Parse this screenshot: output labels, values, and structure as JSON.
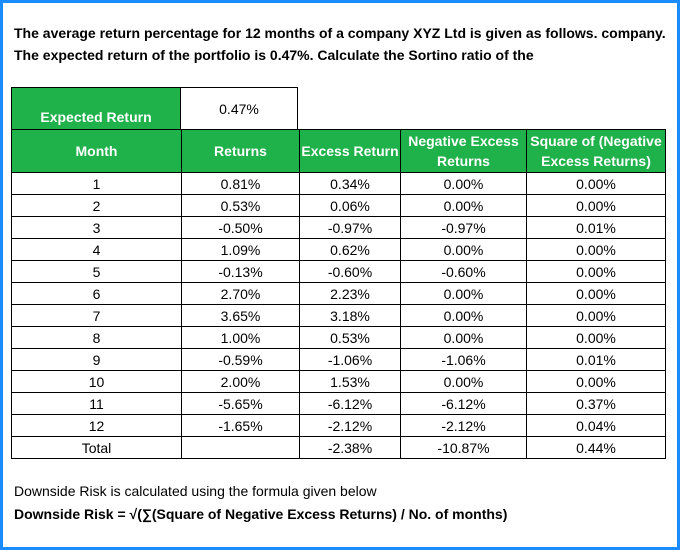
{
  "intro": {
    "line1": "The average return percentage for 12 months of a company XYZ Ltd is given as follows. company.",
    "line2": "The expected return of the portfolio is 0.47%. Calculate the Sortino ratio of the"
  },
  "expected_return": {
    "label": "Expected Return",
    "value": "0.47%"
  },
  "table": {
    "headers": [
      "Month",
      "Returns",
      "Excess Return",
      "Negative Excess Returns",
      "Square of (Negative Excess Returns)"
    ],
    "rows": [
      [
        "1",
        "0.81%",
        "0.34%",
        "0.00%",
        "0.00%"
      ],
      [
        "2",
        "0.53%",
        "0.06%",
        "0.00%",
        "0.00%"
      ],
      [
        "3",
        "-0.50%",
        "-0.97%",
        "-0.97%",
        "0.01%"
      ],
      [
        "4",
        "1.09%",
        "0.62%",
        "0.00%",
        "0.00%"
      ],
      [
        "5",
        "-0.13%",
        "-0.60%",
        "-0.60%",
        "0.00%"
      ],
      [
        "6",
        "2.70%",
        "2.23%",
        "0.00%",
        "0.00%"
      ],
      [
        "7",
        "3.65%",
        "3.18%",
        "0.00%",
        "0.00%"
      ],
      [
        "8",
        "1.00%",
        "0.53%",
        "0.00%",
        "0.00%"
      ],
      [
        "9",
        "-0.59%",
        "-1.06%",
        "-1.06%",
        "0.01%"
      ],
      [
        "10",
        "2.00%",
        "1.53%",
        "0.00%",
        "0.00%"
      ],
      [
        "11",
        "-5.65%",
        "-6.12%",
        "-6.12%",
        "0.37%"
      ],
      [
        "12",
        "-1.65%",
        "-2.12%",
        "-2.12%",
        "0.04%"
      ]
    ],
    "total": [
      "Total",
      "",
      "-2.38%",
      "-10.87%",
      "0.44%"
    ]
  },
  "footer": {
    "line1": "Downside Risk is calculated using the formula given below",
    "line2": "Downside Risk = √(∑(Square of Negative Excess Returns) / No. of months)"
  },
  "colors": {
    "header_green": "#1fb14a",
    "frame_blue": "#1a8cff"
  }
}
